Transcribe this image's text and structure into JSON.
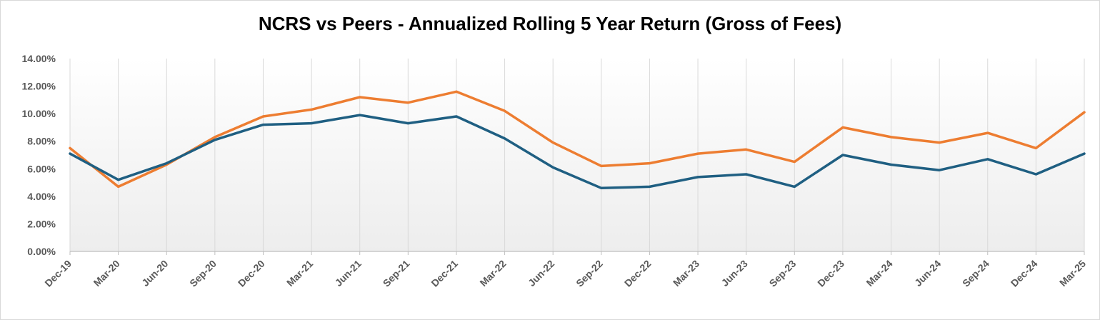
{
  "chart_data": {
    "type": "line",
    "title": "NCRS vs Peers - Annualized Rolling 5 Year Return (Gross of Fees)",
    "xlabel": "",
    "ylabel": "",
    "ylim": [
      0,
      14
    ],
    "y_ticks": [
      "0.00%",
      "2.00%",
      "4.00%",
      "6.00%",
      "8.00%",
      "10.00%",
      "12.00%",
      "14.00%"
    ],
    "categories": [
      "Dec-19",
      "Mar-20",
      "Jun-20",
      "Sep-20",
      "Dec-20",
      "Mar-21",
      "Jun-21",
      "Sep-21",
      "Dec-21",
      "Mar-22",
      "Jun-22",
      "Sep-22",
      "Dec-22",
      "Mar-23",
      "Jun-23",
      "Sep-23",
      "Dec-23",
      "Mar-24",
      "Jun-24",
      "Sep-24",
      "Dec-24",
      "Mar-25"
    ],
    "grid": "vertical",
    "legend": "none",
    "series": [
      {
        "name": "Series 1 (orange)",
        "color": "#ed7d31",
        "values": [
          7.5,
          4.7,
          6.3,
          8.3,
          9.8,
          10.3,
          11.2,
          10.8,
          11.6,
          10.2,
          7.9,
          6.2,
          6.4,
          7.1,
          7.4,
          6.5,
          9.0,
          8.3,
          7.9,
          8.6,
          7.5,
          10.1
        ]
      },
      {
        "name": "Series 2 (blue)",
        "color": "#1f5f82",
        "values": [
          7.1,
          5.2,
          6.4,
          8.1,
          9.2,
          9.3,
          9.9,
          9.3,
          9.8,
          8.2,
          6.1,
          4.6,
          4.7,
          5.4,
          5.6,
          4.7,
          7.0,
          6.3,
          5.9,
          6.7,
          5.6,
          7.1
        ]
      }
    ]
  }
}
